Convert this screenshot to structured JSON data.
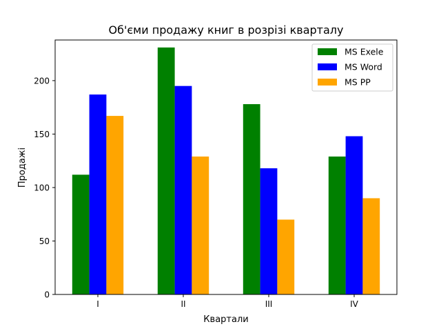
{
  "chart_data": {
    "type": "bar",
    "title": "Об'єми продажу книг в розрізі кварталу",
    "xlabel": "Квартали",
    "ylabel": "Продажі",
    "categories": [
      "I",
      "II",
      "III",
      "IV"
    ],
    "ylim": [
      0,
      238
    ],
    "yticks": [
      "0",
      "50",
      "100",
      "150",
      "200"
    ],
    "grid": false,
    "legend_position": "top-right",
    "series": [
      {
        "name": "MS Exele",
        "color": "#008000",
        "values": [
          112,
          231,
          178,
          129
        ]
      },
      {
        "name": "MS Word",
        "color": "#0000ff",
        "values": [
          187,
          195,
          118,
          148
        ]
      },
      {
        "name": "MS PP",
        "color": "#ffa500",
        "values": [
          167,
          129,
          70,
          90
        ]
      }
    ]
  }
}
